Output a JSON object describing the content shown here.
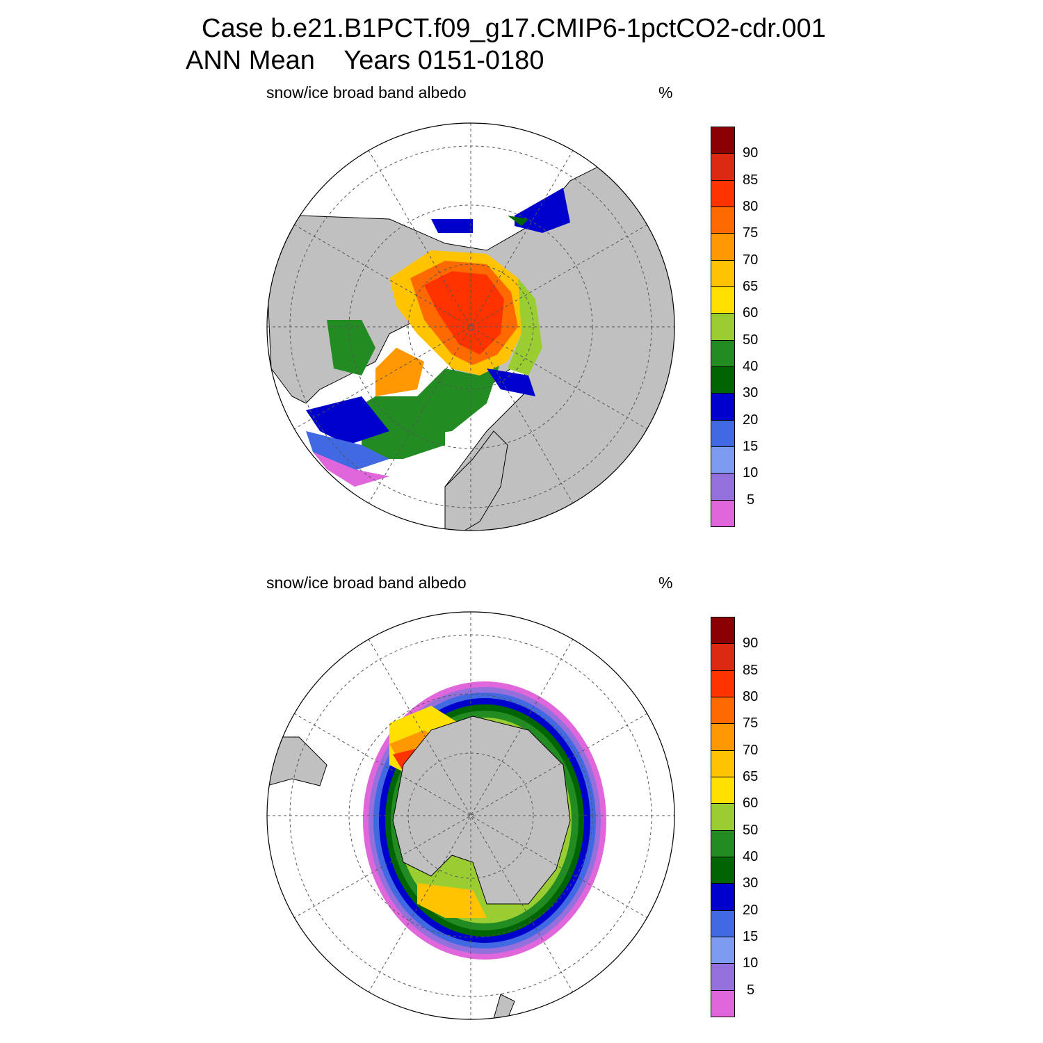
{
  "header": {
    "case_line": "Case b.e21.B1PCT.f09_g17.CMIP6-1pctCO2-cdr.001",
    "period_line": "ANN Mean    Years 0151-0180"
  },
  "panels": [
    {
      "hemisphere": "north",
      "variable": "snow/ice broad band albedo",
      "units": "%"
    },
    {
      "hemisphere": "south",
      "variable": "snow/ice broad band albedo",
      "units": "%"
    }
  ],
  "colorbar": {
    "levels": [
      "5",
      "10",
      "15",
      "20",
      "30",
      "40",
      "50",
      "60",
      "65",
      "70",
      "75",
      "80",
      "85",
      "90"
    ],
    "colors": [
      "#e066dc",
      "#9370db",
      "#7b9af0",
      "#4169e1",
      "#0000cd",
      "#006400",
      "#228b22",
      "#9acd32",
      "#ffe000",
      "#ffc300",
      "#ff9800",
      "#ff6a00",
      "#ff3300",
      "#dc2a10",
      "#8b0000"
    ]
  },
  "map_style": {
    "land_color": "#c0c0c0",
    "background": "#ffffff",
    "grid": "dashed lat/lon"
  }
}
